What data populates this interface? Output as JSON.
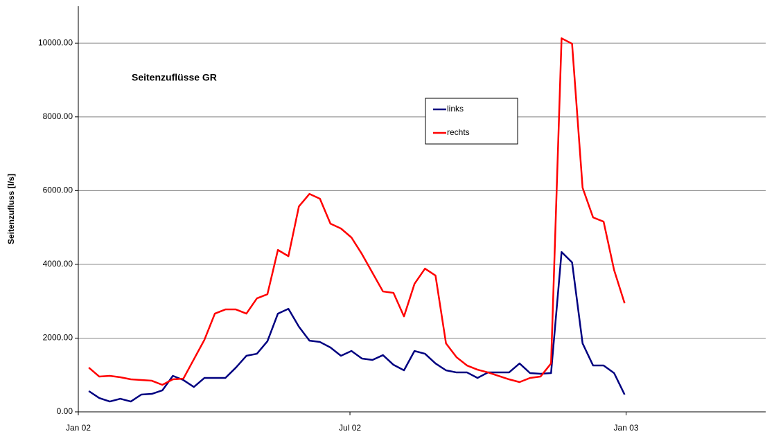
{
  "chart_data": {
    "type": "line",
    "title": "Seitenzuflüsse GR",
    "y_label": "Seitenzufluss [l/s]",
    "x": [
      7,
      14,
      21,
      28,
      35,
      42,
      49,
      56,
      63,
      70,
      77,
      84,
      91,
      98,
      105,
      112,
      119,
      126,
      133,
      140,
      147,
      154,
      161,
      168,
      175,
      182,
      189,
      196,
      203,
      210,
      217,
      224,
      231,
      238,
      245,
      252,
      259,
      266,
      273,
      280,
      287,
      294,
      301,
      308,
      315,
      322,
      329,
      336,
      343,
      350,
      357,
      364
    ],
    "series": [
      {
        "name": "links",
        "color": "#000080",
        "values": [
          563,
          375,
          281,
          356,
          281,
          469,
          488,
          582,
          976,
          863,
          675,
          919,
          919,
          919,
          1200,
          1520,
          1576,
          1914,
          2664,
          2795,
          2308,
          1932,
          1895,
          1745,
          1520,
          1651,
          1445,
          1407,
          1538,
          1276,
          1126,
          1651,
          1576,
          1313,
          1126,
          1069,
          1069,
          919,
          1069,
          1069,
          1069,
          1313,
          1051,
          1032,
          1051,
          4334,
          4053,
          1857,
          1257,
          1257,
          1051,
          469
        ]
      },
      {
        "name": "rechts",
        "color": "#ff0000",
        "values": [
          1200,
          957,
          976,
          938,
          882,
          863,
          844,
          732,
          882,
          900,
          1426,
          1951,
          2664,
          2777,
          2777,
          2664,
          3077,
          3189,
          4390,
          4221,
          5572,
          5910,
          5779,
          5103,
          4972,
          4728,
          4278,
          3771,
          3265,
          3227,
          2589,
          3471,
          3884,
          3696,
          1857,
          1482,
          1257,
          1144,
          1069,
          976,
          882,
          807,
          919,
          957,
          1313,
          10131,
          9981,
          6079,
          5272,
          5159,
          3846,
          2945
        ]
      }
    ],
    "xlim": [
      0,
      458
    ],
    "xticks": [
      {
        "value": 0,
        "label": "Jan 02"
      },
      {
        "value": 181,
        "label": "Jul 02"
      },
      {
        "value": 365,
        "label": "Jan 03"
      }
    ],
    "ylim": [
      0,
      11000
    ],
    "yticks": [
      {
        "value": 0,
        "label": "0.00"
      },
      {
        "value": 2000,
        "label": "2000.00"
      },
      {
        "value": 4000,
        "label": "4000.00"
      },
      {
        "value": 6000,
        "label": "6000.00"
      },
      {
        "value": 8000,
        "label": "8000.00"
      },
      {
        "value": 10000,
        "label": "10000.00"
      }
    ],
    "grid": true,
    "legend": "top-center"
  }
}
